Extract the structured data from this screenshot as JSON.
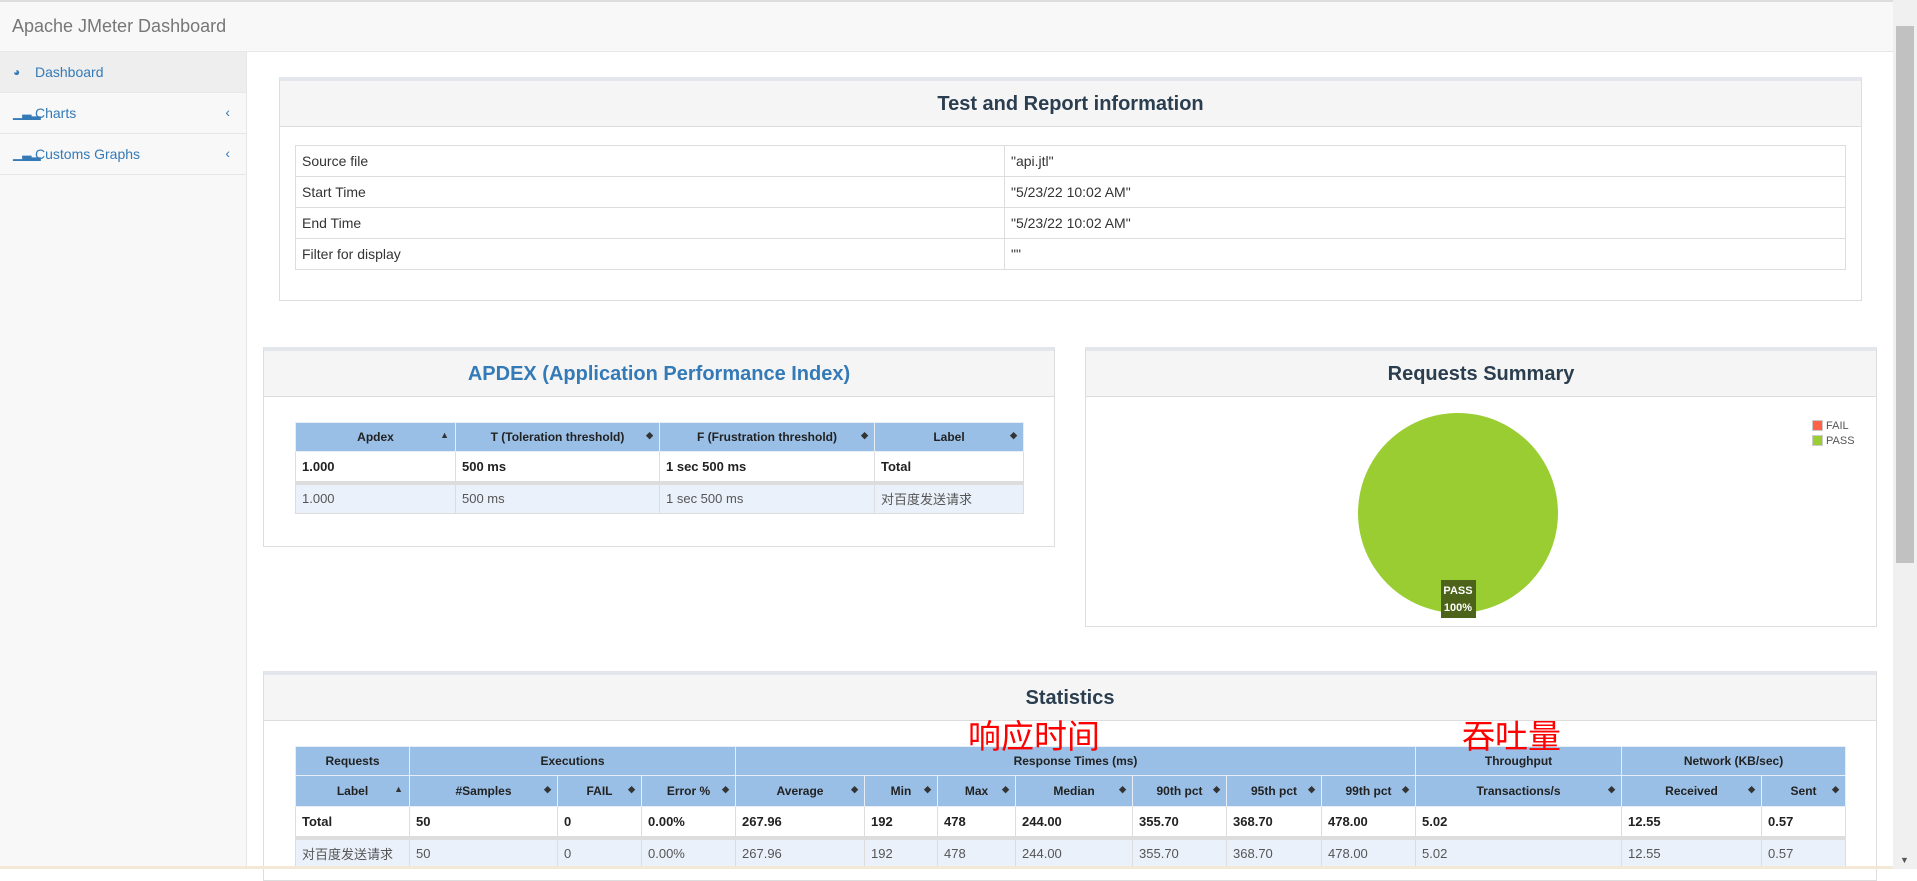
{
  "app": {
    "title": "Apache JMeter Dashboard"
  },
  "sidebar": {
    "items": [
      {
        "label": "Dashboard",
        "icon": "dashboard-icon"
      },
      {
        "label": "Charts",
        "icon": "bar-chart-icon"
      },
      {
        "label": "Customs Graphs",
        "icon": "bar-chart-icon"
      }
    ]
  },
  "info": {
    "title": "Test and Report information",
    "rows": [
      [
        "Source file",
        "\"api.jtl\""
      ],
      [
        "Start Time",
        "\"5/23/22 10:02 AM\""
      ],
      [
        "End Time",
        "\"5/23/22 10:02 AM\""
      ],
      [
        "Filter for display",
        "\"\""
      ]
    ]
  },
  "apdex": {
    "title": "APDEX (Application Performance Index)",
    "headers": [
      "Apdex",
      "T (Toleration threshold)",
      "F (Frustration threshold)",
      "Label"
    ],
    "rows": [
      [
        "1.000",
        "500 ms",
        "1 sec 500 ms",
        "Total"
      ],
      [
        "1.000",
        "500 ms",
        "1 sec 500 ms",
        "对百度发送请求"
      ]
    ]
  },
  "summary": {
    "title": "Requests Summary",
    "legend": [
      {
        "label": "FAIL",
        "color": "#ff6347"
      },
      {
        "label": "PASS",
        "color": "#9acd32"
      }
    ],
    "slice_label": "PASS",
    "slice_pct": "100%"
  },
  "chart_data": {
    "type": "pie",
    "title": "Requests Summary",
    "categories": [
      "FAIL",
      "PASS"
    ],
    "values": [
      0,
      100
    ],
    "legend": "top-right"
  },
  "stats": {
    "title": "Statistics",
    "groups": [
      "Requests",
      "Executions",
      "Response Times (ms)",
      "Throughput",
      "Network (KB/sec)"
    ],
    "headers": [
      "Label",
      "#Samples",
      "FAIL",
      "Error %",
      "Average",
      "Min",
      "Max",
      "Median",
      "90th pct",
      "95th pct",
      "99th pct",
      "Transactions/s",
      "Received",
      "Sent"
    ],
    "rows": [
      [
        "Total",
        "50",
        "0",
        "0.00%",
        "267.96",
        "192",
        "478",
        "244.00",
        "355.70",
        "368.70",
        "478.00",
        "5.02",
        "12.55",
        "0.57"
      ],
      [
        "对百度发送请求",
        "50",
        "0",
        "0.00%",
        "267.96",
        "192",
        "478",
        "244.00",
        "355.70",
        "368.70",
        "478.00",
        "5.02",
        "12.55",
        "0.57"
      ]
    ]
  },
  "annotations": {
    "response_time": "响应时间",
    "throughput": "吞吐量"
  }
}
